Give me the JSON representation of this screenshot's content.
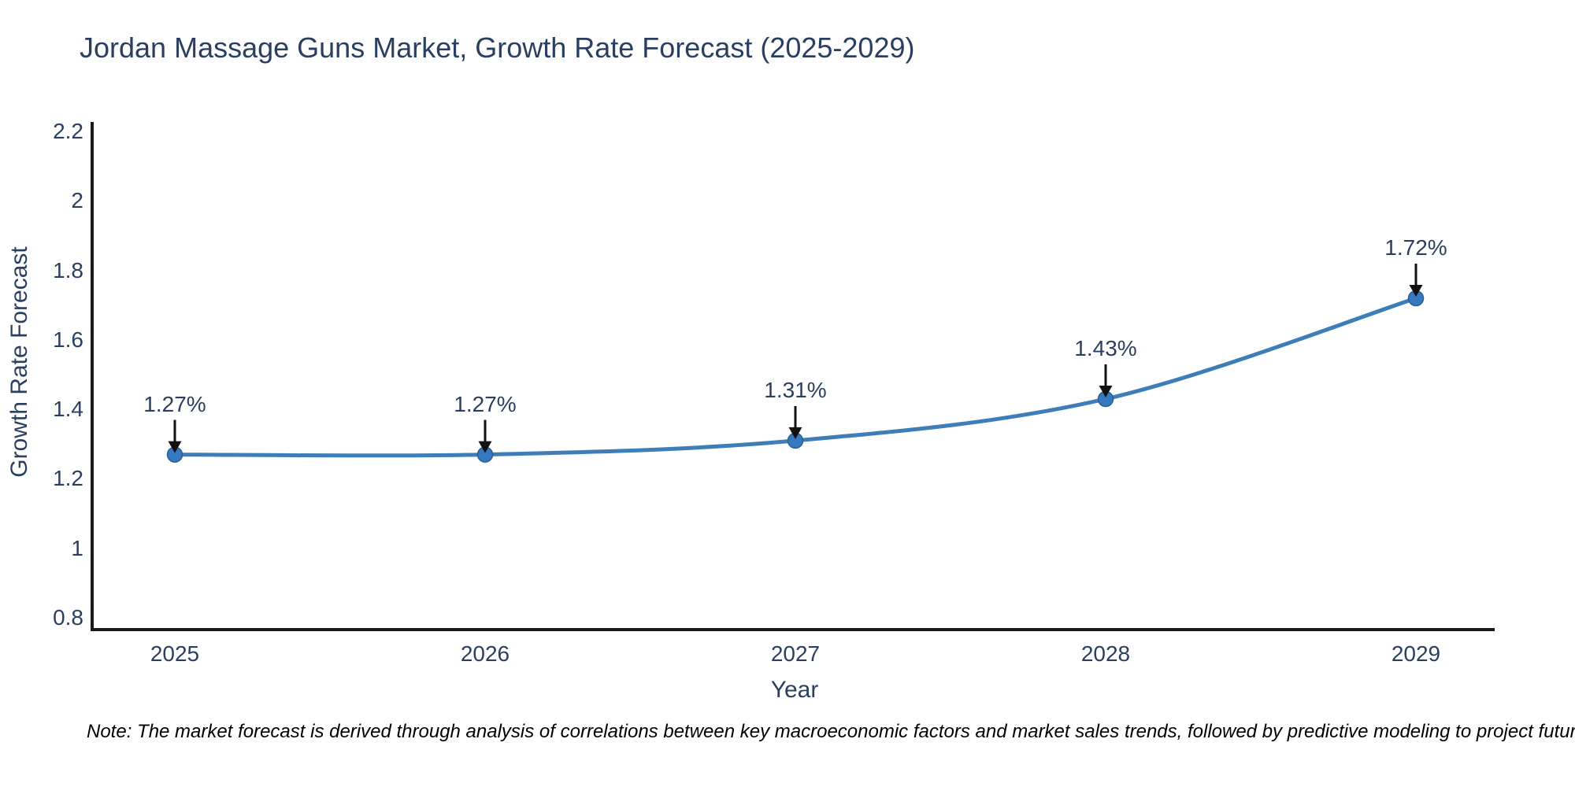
{
  "title": "Jordan Massage Guns Market, Growth Rate Forecast (2025-2029)",
  "note": "Note: The market forecast is derived through analysis of correlations between key macroeconomic factors and market sales trends, followed by predictive modeling to project future sales",
  "colors": {
    "line": "#3d7db8",
    "marker_fill": "#3579c0",
    "marker_edge": "#2b5f91",
    "arrow": "#111111",
    "axis": "#1a1a1a",
    "text": "#2a3f5f",
    "background": "#ffffff"
  },
  "chart_data": {
    "type": "line",
    "title": "Jordan Massage Guns Market, Growth Rate Forecast (2025-2029)",
    "xlabel": "Year",
    "ylabel": "Growth Rate Forecast",
    "x": [
      2025,
      2026,
      2027,
      2028,
      2029
    ],
    "values": [
      1.27,
      1.27,
      1.31,
      1.43,
      1.72
    ],
    "point_labels": [
      "1.27%",
      "1.27%",
      "1.31%",
      "1.43%",
      "1.72%"
    ],
    "xtick_labels": [
      "2025",
      "2026",
      "2027",
      "2028",
      "2029"
    ],
    "yticks": [
      0.8,
      1,
      1.2,
      1.4,
      1.6,
      1.8,
      2,
      2.2
    ],
    "ytick_labels": [
      "0.8",
      "1",
      "1.2",
      "1.4",
      "1.6",
      "1.8",
      "2",
      "2.2"
    ],
    "ylim": [
      0.766,
      2.223
    ],
    "xlim": [
      2024.73,
      2029.25
    ],
    "grid": false,
    "legend": "none",
    "line_shape": "spline",
    "markers": true,
    "annotations_have_arrows": true
  }
}
